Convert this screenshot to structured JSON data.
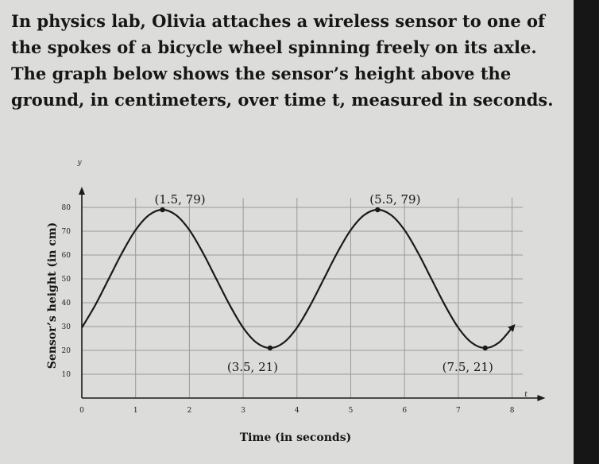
{
  "problem": {
    "text": "In physics lab, Olivia attaches a wireless sensor to one of the spokes of a bicycle wheel spinning freely on its axle. The graph below shows the sensor’s height above the ground, in centimeters, over time t, measured in seconds."
  },
  "chart_data": {
    "type": "line",
    "title": "",
    "xlabel": "Time (in seconds)",
    "ylabel": "Sensor’s height (in cm)",
    "x_var": "t",
    "y_var": "y",
    "xlim": [
      0,
      8.5
    ],
    "ylim": [
      0,
      88
    ],
    "x_ticks": [
      0,
      1,
      2,
      3,
      4,
      5,
      6,
      7,
      8
    ],
    "y_ticks": [
      10,
      20,
      30,
      40,
      50,
      60,
      70,
      80
    ],
    "grid": true,
    "x": [
      0,
      0.25,
      0.5,
      0.75,
      1,
      1.25,
      1.5,
      1.75,
      2,
      2.25,
      2.5,
      2.75,
      3,
      3.25,
      3.5,
      3.75,
      4,
      4.25,
      4.5,
      4.75,
      5,
      5.25,
      5.5,
      5.75,
      6,
      6.25,
      6.5,
      6.75,
      7,
      7.25,
      7.5,
      7.75,
      8
    ],
    "y": [
      29.5,
      39.0,
      50.0,
      61.0,
      70.5,
      76.8,
      79.0,
      76.8,
      70.5,
      61.0,
      50.0,
      39.0,
      29.5,
      23.2,
      21.0,
      23.2,
      29.5,
      39.0,
      50.0,
      61.0,
      70.5,
      76.8,
      79.0,
      76.8,
      70.5,
      61.0,
      50.0,
      39.0,
      29.5,
      23.2,
      21.0,
      23.2,
      29.5
    ],
    "end_arrow": true,
    "points": [
      {
        "x": 1.5,
        "y": 79,
        "label": "(1.5, 79)"
      },
      {
        "x": 3.5,
        "y": 21,
        "label": "(3.5, 21)"
      },
      {
        "x": 5.5,
        "y": 79,
        "label": "(5.5, 79)"
      },
      {
        "x": 7.5,
        "y": 21,
        "label": "(7.5, 21)"
      }
    ],
    "colors": {
      "curve": "#1a1a1a",
      "grid": "#9a9a9a",
      "axis": "#1a1a1a"
    }
  }
}
